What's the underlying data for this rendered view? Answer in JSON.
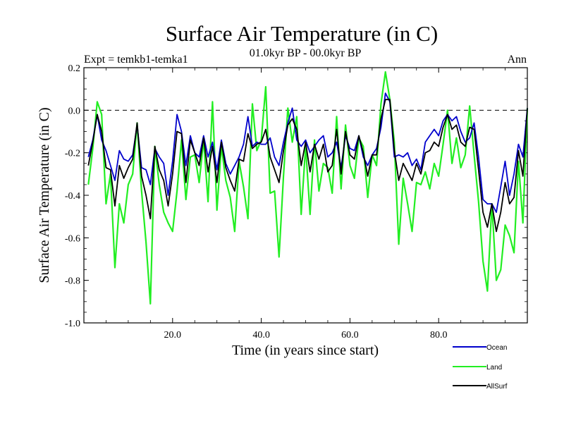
{
  "chart_data": {
    "type": "line",
    "title": "Surface Air Temperature (in C)",
    "subtitle": "01.0kyr BP - 00.0kyr BP",
    "left_label": "Expt = temkb1-temka1",
    "right_label": "Ann",
    "xlabel": "Time (in years since start)",
    "ylabel": "Surface Air Temperature (in C)",
    "xlim": [
      0,
      100
    ],
    "ylim": [
      -1.0,
      0.2
    ],
    "x_ticks": [
      20,
      40,
      60,
      80
    ],
    "x_tick_labels": [
      "20.0",
      "40.0",
      "60.0",
      "80.0"
    ],
    "y_ticks": [
      -1.0,
      -0.8,
      -0.6,
      -0.4,
      -0.2,
      0.0,
      0.2
    ],
    "y_tick_labels": [
      "-1.0",
      "-0.8",
      "-0.6",
      "-0.4",
      "-0.2",
      "0.0",
      "0.2"
    ],
    "reference_line": 0.0,
    "x": [
      1,
      2,
      3,
      4,
      5,
      6,
      7,
      8,
      9,
      10,
      11,
      12,
      13,
      14,
      15,
      16,
      17,
      18,
      19,
      20,
      21,
      22,
      23,
      24,
      25,
      26,
      27,
      28,
      29,
      30,
      31,
      32,
      33,
      34,
      35,
      36,
      37,
      38,
      39,
      40,
      41,
      42,
      43,
      44,
      45,
      46,
      47,
      48,
      49,
      50,
      51,
      52,
      53,
      54,
      55,
      56,
      57,
      58,
      59,
      60,
      61,
      62,
      63,
      64,
      65,
      66,
      67,
      68,
      69,
      70,
      71,
      72,
      73,
      74,
      75,
      76,
      77,
      78,
      79,
      80,
      81,
      82,
      83,
      84,
      85,
      86,
      87,
      88,
      89,
      90,
      91,
      92,
      93,
      94,
      95,
      96,
      97,
      98,
      99,
      100
    ],
    "series": [
      {
        "name": "Ocean",
        "color": "#0000cc",
        "values": [
          -0.22,
          -0.14,
          -0.02,
          -0.14,
          -0.19,
          -0.26,
          -0.33,
          -0.19,
          -0.23,
          -0.24,
          -0.21,
          -0.07,
          -0.27,
          -0.28,
          -0.35,
          -0.18,
          -0.22,
          -0.25,
          -0.4,
          -0.24,
          -0.02,
          -0.1,
          -0.26,
          -0.12,
          -0.2,
          -0.22,
          -0.12,
          -0.22,
          -0.15,
          -0.28,
          -0.14,
          -0.25,
          -0.3,
          -0.26,
          -0.22,
          -0.16,
          -0.03,
          -0.17,
          -0.15,
          -0.16,
          -0.16,
          -0.13,
          -0.22,
          -0.26,
          -0.15,
          -0.06,
          0.01,
          -0.14,
          -0.17,
          -0.14,
          -0.2,
          -0.17,
          -0.14,
          -0.12,
          -0.22,
          -0.2,
          -0.15,
          -0.27,
          -0.12,
          -0.18,
          -0.19,
          -0.12,
          -0.22,
          -0.26,
          -0.21,
          -0.18,
          -0.08,
          0.08,
          0.04,
          -0.22,
          -0.21,
          -0.22,
          -0.2,
          -0.26,
          -0.23,
          -0.28,
          -0.15,
          -0.12,
          -0.09,
          -0.12,
          -0.05,
          -0.02,
          -0.05,
          -0.03,
          -0.1,
          -0.15,
          -0.13,
          -0.06,
          -0.22,
          -0.42,
          -0.44,
          -0.44,
          -0.48,
          -0.36,
          -0.24,
          -0.4,
          -0.3,
          -0.16,
          -0.22,
          0.01
        ]
      },
      {
        "name": "Land",
        "color": "#22ee22",
        "values": [
          -0.35,
          -0.18,
          0.04,
          -0.02,
          -0.44,
          -0.3,
          -0.74,
          -0.44,
          -0.53,
          -0.35,
          -0.3,
          -0.06,
          -0.38,
          -0.62,
          -0.91,
          -0.17,
          -0.35,
          -0.48,
          -0.53,
          -0.57,
          -0.38,
          -0.14,
          -0.42,
          -0.22,
          -0.21,
          -0.34,
          -0.14,
          -0.43,
          0.04,
          -0.47,
          -0.17,
          -0.33,
          -0.41,
          -0.57,
          -0.24,
          -0.36,
          -0.51,
          0.03,
          -0.19,
          -0.14,
          0.11,
          -0.39,
          -0.38,
          -0.69,
          -0.31,
          0.01,
          -0.15,
          -0.03,
          -0.49,
          -0.17,
          -0.49,
          -0.14,
          -0.38,
          -0.25,
          -0.27,
          -0.39,
          -0.03,
          -0.37,
          -0.07,
          -0.26,
          -0.32,
          -0.13,
          -0.17,
          -0.41,
          -0.21,
          -0.26,
          0.03,
          0.18,
          0.05,
          -0.15,
          -0.63,
          -0.32,
          -0.44,
          -0.57,
          -0.34,
          -0.35,
          -0.29,
          -0.37,
          -0.25,
          -0.31,
          -0.16,
          0.0,
          -0.25,
          -0.13,
          -0.27,
          -0.21,
          0.02,
          -0.21,
          -0.43,
          -0.71,
          -0.85,
          -0.44,
          -0.8,
          -0.75,
          -0.54,
          -0.59,
          -0.67,
          -0.24,
          -0.53,
          0.01
        ]
      },
      {
        "name": "AllSurf",
        "color": "#000000",
        "values": [
          -0.26,
          -0.15,
          -0.02,
          -0.1,
          -0.27,
          -0.28,
          -0.45,
          -0.26,
          -0.32,
          -0.27,
          -0.23,
          -0.06,
          -0.31,
          -0.4,
          -0.51,
          -0.17,
          -0.28,
          -0.33,
          -0.45,
          -0.3,
          -0.1,
          -0.11,
          -0.34,
          -0.14,
          -0.2,
          -0.26,
          -0.13,
          -0.29,
          -0.17,
          -0.34,
          -0.15,
          -0.27,
          -0.33,
          -0.38,
          -0.23,
          -0.24,
          -0.11,
          -0.18,
          -0.16,
          -0.15,
          -0.09,
          -0.22,
          -0.28,
          -0.34,
          -0.19,
          -0.07,
          -0.04,
          -0.09,
          -0.26,
          -0.15,
          -0.29,
          -0.16,
          -0.23,
          -0.16,
          -0.29,
          -0.26,
          -0.09,
          -0.3,
          -0.1,
          -0.21,
          -0.23,
          -0.12,
          -0.2,
          -0.31,
          -0.21,
          -0.21,
          -0.04,
          0.05,
          0.05,
          -0.19,
          -0.33,
          -0.25,
          -0.29,
          -0.33,
          -0.25,
          -0.3,
          -0.2,
          -0.19,
          -0.15,
          -0.17,
          -0.08,
          -0.02,
          -0.09,
          -0.07,
          -0.15,
          -0.17,
          -0.08,
          -0.09,
          -0.28,
          -0.48,
          -0.55,
          -0.44,
          -0.57,
          -0.48,
          -0.34,
          -0.44,
          -0.41,
          -0.19,
          -0.31,
          0.01
        ]
      }
    ],
    "legend": {
      "placement": "bottom-right",
      "entries": [
        "Ocean",
        "Land",
        "AllSurf"
      ]
    }
  }
}
